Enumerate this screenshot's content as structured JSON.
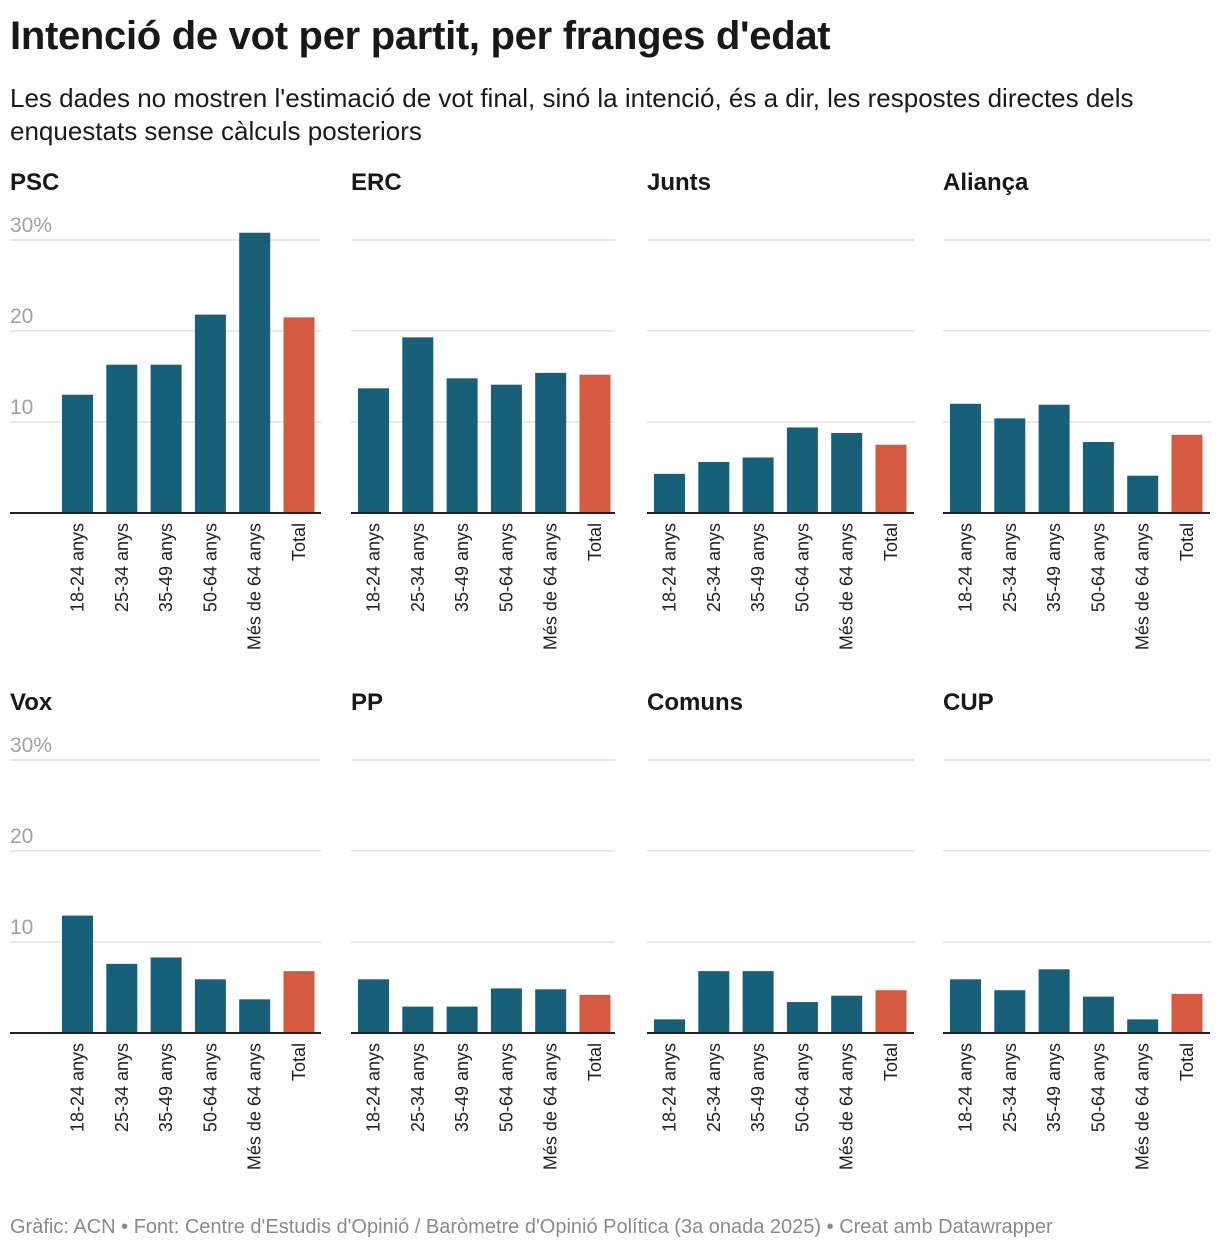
{
  "title": "Intenció de vot per partit, per franges d'edat",
  "subtitle": "Les dades no mostren l'estimació de vot final, sinó la intenció, és a dir, les respostes directes dels enquestats sense càlculs posteriors",
  "footer": "Gràfic: ACN • Font: Centre d'Estudis d'Opinió / Baròmetre d'Opinió Política (3a onada 2025) • Creat amb Datawrapper",
  "colors": {
    "bar": "#17607a",
    "total": "#d55a40",
    "grid": "#e2e2e2",
    "axis": "#222222",
    "tick": "#a0a0a0"
  },
  "chart_data": {
    "type": "bar",
    "categories": [
      "18-24 anys",
      "25-34 anys",
      "35-49 anys",
      "50-64 anys",
      "Més de 64 anys",
      "Total"
    ],
    "ylim": [
      0,
      30
    ],
    "yticks": [
      "10",
      "20",
      "30%"
    ],
    "grid": true,
    "series": [
      {
        "name": "PSC",
        "values": [
          13.0,
          16.3,
          16.3,
          21.8,
          30.8,
          21.5
        ]
      },
      {
        "name": "ERC",
        "values": [
          13.7,
          19.3,
          14.8,
          14.1,
          15.4,
          15.2
        ]
      },
      {
        "name": "Junts",
        "values": [
          4.3,
          5.6,
          6.1,
          9.4,
          8.8,
          7.5
        ]
      },
      {
        "name": "Aliança",
        "values": [
          12.0,
          10.4,
          11.9,
          7.8,
          4.1,
          8.6
        ]
      },
      {
        "name": "Vox",
        "values": [
          12.9,
          7.6,
          8.3,
          5.9,
          3.7,
          6.8
        ]
      },
      {
        "name": "PP",
        "values": [
          5.9,
          2.9,
          2.9,
          4.9,
          4.8,
          4.2
        ]
      },
      {
        "name": "Comuns",
        "values": [
          1.5,
          6.8,
          6.8,
          3.4,
          4.1,
          4.7
        ]
      },
      {
        "name": "CUP",
        "values": [
          5.9,
          4.7,
          7.0,
          4.0,
          1.5,
          4.3
        ]
      }
    ]
  }
}
